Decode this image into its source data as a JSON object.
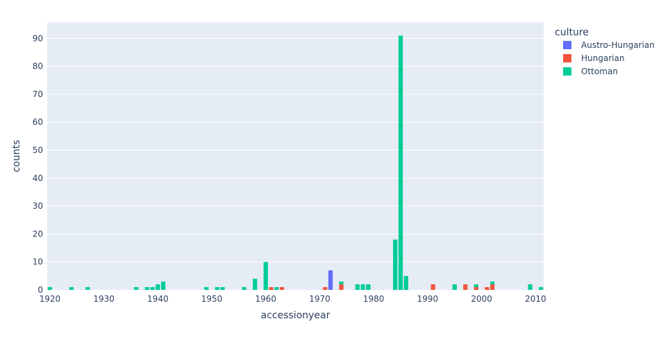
{
  "chart_data": {
    "type": "bar",
    "barmode": "stack",
    "xlabel": "accessionyear",
    "ylabel": "counts",
    "xlim": [
      1919.5,
      2011.5
    ],
    "ylim": [
      0,
      95.8
    ],
    "xticks": [
      1920,
      1930,
      1940,
      1950,
      1960,
      1970,
      1980,
      1990,
      2000,
      2010
    ],
    "yticks": [
      0,
      10,
      20,
      30,
      40,
      50,
      60,
      70,
      80,
      90
    ],
    "grid": true,
    "legend": {
      "title": "culture",
      "placement": "right"
    },
    "series": [
      {
        "name": "Austro-Hungarian",
        "color": "#636efa",
        "points": [
          {
            "x": 1972,
            "y": 7
          }
        ]
      },
      {
        "name": "Hungarian",
        "color": "#ef553b",
        "points": [
          {
            "x": 1961,
            "y": 1
          },
          {
            "x": 1963,
            "y": 1
          },
          {
            "x": 1971,
            "y": 1
          },
          {
            "x": 1974,
            "y": 2
          },
          {
            "x": 1991,
            "y": 2
          },
          {
            "x": 1997,
            "y": 2
          },
          {
            "x": 1999,
            "y": 1
          },
          {
            "x": 2001,
            "y": 1
          },
          {
            "x": 2002,
            "y": 2
          }
        ]
      },
      {
        "name": "Ottoman",
        "color": "#00cc96",
        "points": [
          {
            "x": 1920,
            "y": 1
          },
          {
            "x": 1924,
            "y": 1
          },
          {
            "x": 1927,
            "y": 1
          },
          {
            "x": 1936,
            "y": 1
          },
          {
            "x": 1938,
            "y": 1
          },
          {
            "x": 1939,
            "y": 1
          },
          {
            "x": 1940,
            "y": 2
          },
          {
            "x": 1941,
            "y": 3
          },
          {
            "x": 1949,
            "y": 1
          },
          {
            "x": 1951,
            "y": 1
          },
          {
            "x": 1952,
            "y": 1
          },
          {
            "x": 1956,
            "y": 1
          },
          {
            "x": 1958,
            "y": 4
          },
          {
            "x": 1960,
            "y": 10
          },
          {
            "x": 1962,
            "y": 1
          },
          {
            "x": 1974,
            "y": 1
          },
          {
            "x": 1977,
            "y": 2
          },
          {
            "x": 1978,
            "y": 2
          },
          {
            "x": 1979,
            "y": 2
          },
          {
            "x": 1984,
            "y": 18
          },
          {
            "x": 1985,
            "y": 91
          },
          {
            "x": 1986,
            "y": 5
          },
          {
            "x": 1995,
            "y": 2
          },
          {
            "x": 1999,
            "y": 1
          },
          {
            "x": 2002,
            "y": 1
          },
          {
            "x": 2009,
            "y": 2
          },
          {
            "x": 2011,
            "y": 1
          }
        ]
      }
    ]
  }
}
